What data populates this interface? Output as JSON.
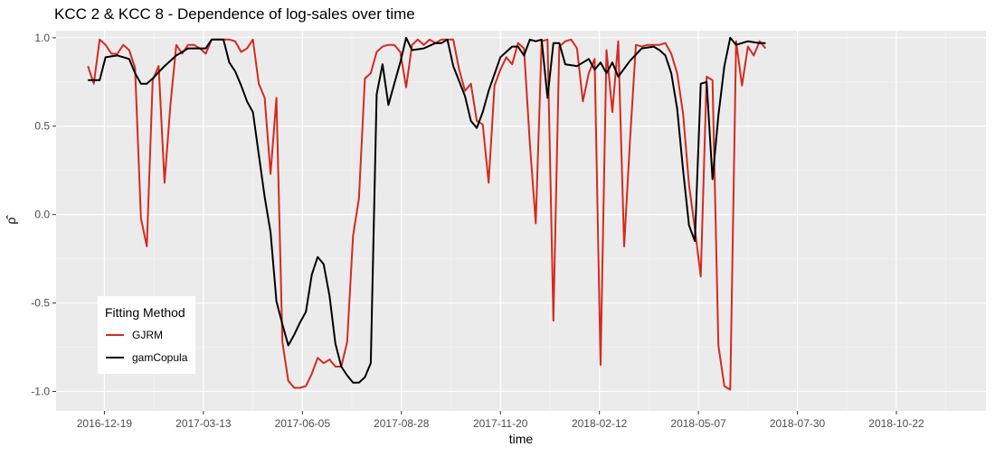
{
  "chart_data": {
    "type": "line",
    "title": "KCC 2 & KCC 8 - Dependence of log-sales over time",
    "xlabel": "time",
    "ylabel": "ρ̂",
    "x_ticks": [
      "2016-12-19",
      "2017-03-13",
      "2017-06-05",
      "2017-08-28",
      "2017-11-20",
      "2018-02-12",
      "2018-05-07",
      "2018-07-30",
      "2018-10-22"
    ],
    "x_range": [
      "2016-11-08",
      "2019-01-06"
    ],
    "y_ticks": [
      -1.0,
      -0.5,
      0.0,
      0.5,
      1.0
    ],
    "y_tick_labels": [
      "-1.0",
      "-0.5",
      "0.0",
      "0.5",
      "1.0"
    ],
    "ylim": [
      -1.11,
      1.04
    ],
    "grid": true,
    "legend": {
      "title": "Fitting Method",
      "position": "bottom-left",
      "entries": [
        {
          "label": "GJRM",
          "color": "#d42a20"
        },
        {
          "label": "gamCopula",
          "color": "#000000"
        }
      ]
    },
    "series": [
      {
        "name": "GJRM",
        "color": "#d42a20",
        "points": [
          [
            "2016-12-05",
            0.84
          ],
          [
            "2016-12-10",
            0.74
          ],
          [
            "2016-12-15",
            0.99
          ],
          [
            "2016-12-20",
            0.96
          ],
          [
            "2016-12-25",
            0.91
          ],
          [
            "2016-12-30",
            0.91
          ],
          [
            "2017-01-04",
            0.96
          ],
          [
            "2017-01-09",
            0.93
          ],
          [
            "2017-01-14",
            0.83
          ],
          [
            "2017-01-19",
            -0.02
          ],
          [
            "2017-01-24",
            -0.18
          ],
          [
            "2017-01-29",
            0.76
          ],
          [
            "2017-02-03",
            0.84
          ],
          [
            "2017-02-08",
            0.18
          ],
          [
            "2017-02-13",
            0.62
          ],
          [
            "2017-02-18",
            0.96
          ],
          [
            "2017-02-23",
            0.91
          ],
          [
            "2017-02-28",
            0.96
          ],
          [
            "2017-03-05",
            0.96
          ],
          [
            "2017-03-10",
            0.94
          ],
          [
            "2017-03-15",
            0.91
          ],
          [
            "2017-03-20",
            0.99
          ],
          [
            "2017-03-25",
            0.99
          ],
          [
            "2017-03-30",
            0.99
          ],
          [
            "2017-04-04",
            0.99
          ],
          [
            "2017-04-09",
            0.98
          ],
          [
            "2017-04-14",
            0.92
          ],
          [
            "2017-04-19",
            0.94
          ],
          [
            "2017-04-24",
            0.99
          ],
          [
            "2017-04-29",
            0.74
          ],
          [
            "2017-05-04",
            0.66
          ],
          [
            "2017-05-09",
            0.23
          ],
          [
            "2017-05-14",
            0.66
          ],
          [
            "2017-05-19",
            -0.72
          ],
          [
            "2017-05-24",
            -0.94
          ],
          [
            "2017-05-29",
            -0.98
          ],
          [
            "2017-06-03",
            -0.98
          ],
          [
            "2017-06-08",
            -0.97
          ],
          [
            "2017-06-13",
            -0.9
          ],
          [
            "2017-06-18",
            -0.81
          ],
          [
            "2017-06-23",
            -0.84
          ],
          [
            "2017-06-28",
            -0.82
          ],
          [
            "2017-07-03",
            -0.86
          ],
          [
            "2017-07-08",
            -0.86
          ],
          [
            "2017-07-13",
            -0.72
          ],
          [
            "2017-07-18",
            -0.12
          ],
          [
            "2017-07-23",
            0.09
          ],
          [
            "2017-07-28",
            0.77
          ],
          [
            "2017-08-02",
            0.8
          ],
          [
            "2017-08-07",
            0.92
          ],
          [
            "2017-08-12",
            0.95
          ],
          [
            "2017-08-17",
            0.96
          ],
          [
            "2017-08-22",
            0.96
          ],
          [
            "2017-08-27",
            0.92
          ],
          [
            "2017-09-01",
            0.72
          ],
          [
            "2017-09-06",
            0.96
          ],
          [
            "2017-09-11",
            0.99
          ],
          [
            "2017-09-16",
            0.96
          ],
          [
            "2017-09-21",
            0.99
          ],
          [
            "2017-09-26",
            0.97
          ],
          [
            "2017-10-01",
            0.99
          ],
          [
            "2017-10-06",
            0.99
          ],
          [
            "2017-10-11",
            0.99
          ],
          [
            "2017-10-16",
            0.82
          ],
          [
            "2017-10-21",
            0.7
          ],
          [
            "2017-10-26",
            0.74
          ],
          [
            "2017-10-31",
            0.53
          ],
          [
            "2017-11-05",
            0.51
          ],
          [
            "2017-11-10",
            0.18
          ],
          [
            "2017-11-15",
            0.73
          ],
          [
            "2017-11-20",
            0.82
          ],
          [
            "2017-11-25",
            0.89
          ],
          [
            "2017-11-30",
            0.85
          ],
          [
            "2017-12-05",
            0.97
          ],
          [
            "2017-12-10",
            0.94
          ],
          [
            "2017-12-15",
            0.4
          ],
          [
            "2017-12-20",
            -0.05
          ],
          [
            "2017-12-25",
            0.98
          ],
          [
            "2017-12-30",
            0.99
          ],
          [
            "2018-01-04",
            -0.6
          ],
          [
            "2018-01-09",
            0.95
          ],
          [
            "2018-01-14",
            0.98
          ],
          [
            "2018-01-19",
            0.99
          ],
          [
            "2018-01-24",
            0.94
          ],
          [
            "2018-01-29",
            0.64
          ],
          [
            "2018-02-03",
            0.8
          ],
          [
            "2018-02-08",
            0.88
          ],
          [
            "2018-02-13",
            -0.85
          ],
          [
            "2018-02-18",
            0.93
          ],
          [
            "2018-02-23",
            0.58
          ],
          [
            "2018-02-28",
            0.98
          ],
          [
            "2018-03-05",
            -0.18
          ],
          [
            "2018-03-10",
            0.42
          ],
          [
            "2018-03-15",
            0.96
          ],
          [
            "2018-03-20",
            0.95
          ],
          [
            "2018-03-25",
            0.96
          ],
          [
            "2018-03-30",
            0.96
          ],
          [
            "2018-04-04",
            0.96
          ],
          [
            "2018-04-09",
            0.97
          ],
          [
            "2018-04-14",
            0.91
          ],
          [
            "2018-04-19",
            0.8
          ],
          [
            "2018-04-24",
            0.57
          ],
          [
            "2018-04-29",
            0.17
          ],
          [
            "2018-05-04",
            -0.08
          ],
          [
            "2018-05-09",
            -0.35
          ],
          [
            "2018-05-14",
            0.78
          ],
          [
            "2018-05-19",
            0.76
          ],
          [
            "2018-05-24",
            -0.74
          ],
          [
            "2018-05-29",
            -0.97
          ],
          [
            "2018-06-03",
            -0.99
          ],
          [
            "2018-06-08",
            0.98
          ],
          [
            "2018-06-13",
            0.73
          ],
          [
            "2018-06-18",
            0.95
          ],
          [
            "2018-06-23",
            0.9
          ],
          [
            "2018-06-28",
            0.98
          ],
          [
            "2018-07-03",
            0.94
          ]
        ]
      },
      {
        "name": "gamCopula",
        "color": "#000000",
        "points": [
          [
            "2016-12-05",
            0.76
          ],
          [
            "2016-12-15",
            0.76
          ],
          [
            "2016-12-20",
            0.89
          ],
          [
            "2016-12-30",
            0.9
          ],
          [
            "2017-01-09",
            0.88
          ],
          [
            "2017-01-14",
            0.8
          ],
          [
            "2017-01-19",
            0.74
          ],
          [
            "2017-01-24",
            0.74
          ],
          [
            "2017-01-29",
            0.77
          ],
          [
            "2017-02-08",
            0.84
          ],
          [
            "2017-02-18",
            0.9
          ],
          [
            "2017-02-28",
            0.94
          ],
          [
            "2017-03-15",
            0.94
          ],
          [
            "2017-03-20",
            0.99
          ],
          [
            "2017-03-30",
            0.99
          ],
          [
            "2017-04-04",
            0.86
          ],
          [
            "2017-04-09",
            0.81
          ],
          [
            "2017-04-14",
            0.73
          ],
          [
            "2017-04-19",
            0.64
          ],
          [
            "2017-04-24",
            0.58
          ],
          [
            "2017-05-04",
            0.1
          ],
          [
            "2017-05-09",
            -0.1
          ],
          [
            "2017-05-14",
            -0.49
          ],
          [
            "2017-05-19",
            -0.62
          ],
          [
            "2017-05-24",
            -0.74
          ],
          [
            "2017-05-29",
            -0.68
          ],
          [
            "2017-06-03",
            -0.61
          ],
          [
            "2017-06-08",
            -0.55
          ],
          [
            "2017-06-13",
            -0.34
          ],
          [
            "2017-06-18",
            -0.24
          ],
          [
            "2017-06-23",
            -0.28
          ],
          [
            "2017-06-28",
            -0.46
          ],
          [
            "2017-07-03",
            -0.73
          ],
          [
            "2017-07-08",
            -0.86
          ],
          [
            "2017-07-13",
            -0.91
          ],
          [
            "2017-07-18",
            -0.95
          ],
          [
            "2017-07-23",
            -0.95
          ],
          [
            "2017-07-28",
            -0.92
          ],
          [
            "2017-08-02",
            -0.84
          ],
          [
            "2017-08-07",
            0.68
          ],
          [
            "2017-08-12",
            0.85
          ],
          [
            "2017-08-17",
            0.62
          ],
          [
            "2017-08-22",
            0.74
          ],
          [
            "2017-08-27",
            0.86
          ],
          [
            "2017-09-01",
            1.0
          ],
          [
            "2017-09-06",
            0.93
          ],
          [
            "2017-09-16",
            0.94
          ],
          [
            "2017-09-26",
            0.97
          ],
          [
            "2017-10-01",
            0.97
          ],
          [
            "2017-10-06",
            0.99
          ],
          [
            "2017-10-11",
            0.84
          ],
          [
            "2017-10-21",
            0.67
          ],
          [
            "2017-10-26",
            0.53
          ],
          [
            "2017-10-31",
            0.49
          ],
          [
            "2017-11-05",
            0.58
          ],
          [
            "2017-11-10",
            0.7
          ],
          [
            "2017-11-20",
            0.89
          ],
          [
            "2017-11-25",
            0.92
          ],
          [
            "2017-11-30",
            0.95
          ],
          [
            "2017-12-05",
            0.95
          ],
          [
            "2017-12-10",
            0.9
          ],
          [
            "2017-12-15",
            0.99
          ],
          [
            "2017-12-20",
            0.98
          ],
          [
            "2017-12-25",
            0.99
          ],
          [
            "2017-12-30",
            0.66
          ],
          [
            "2018-01-04",
            0.97
          ],
          [
            "2018-01-09",
            0.97
          ],
          [
            "2018-01-14",
            0.85
          ],
          [
            "2018-01-24",
            0.84
          ],
          [
            "2018-02-03",
            0.88
          ],
          [
            "2018-02-08",
            0.82
          ],
          [
            "2018-02-13",
            0.86
          ],
          [
            "2018-02-18",
            0.8
          ],
          [
            "2018-02-23",
            0.86
          ],
          [
            "2018-02-28",
            0.78
          ],
          [
            "2018-03-10",
            0.87
          ],
          [
            "2018-03-20",
            0.94
          ],
          [
            "2018-03-30",
            0.95
          ],
          [
            "2018-04-04",
            0.93
          ],
          [
            "2018-04-09",
            0.9
          ],
          [
            "2018-04-14",
            0.8
          ],
          [
            "2018-04-19",
            0.6
          ],
          [
            "2018-04-24",
            0.25
          ],
          [
            "2018-04-29",
            -0.06
          ],
          [
            "2018-05-04",
            -0.15
          ],
          [
            "2018-05-09",
            0.74
          ],
          [
            "2018-05-14",
            0.75
          ],
          [
            "2018-05-19",
            0.2
          ],
          [
            "2018-05-24",
            0.56
          ],
          [
            "2018-05-29",
            0.84
          ],
          [
            "2018-06-03",
            1.0
          ],
          [
            "2018-06-08",
            0.96
          ],
          [
            "2018-06-18",
            0.98
          ],
          [
            "2018-06-28",
            0.97
          ],
          [
            "2018-07-03",
            0.97
          ]
        ]
      }
    ]
  }
}
